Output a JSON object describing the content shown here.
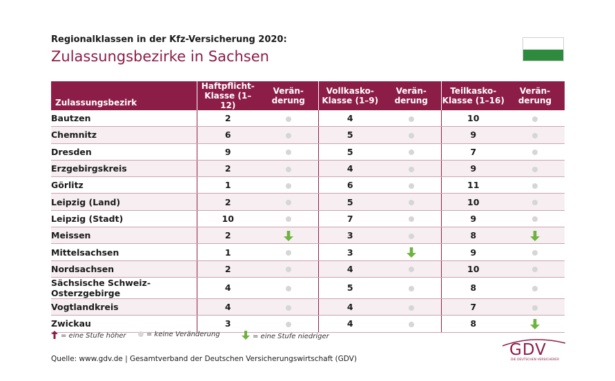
{
  "header": {
    "subtitle": "Regionalklassen in der Kfz-Versicherung 2020:",
    "title": "Zulassungsbezirke in Sachsen"
  },
  "flag": {
    "top_color": "#ffffff",
    "bottom_color": "#2e8b3e"
  },
  "table": {
    "columns": {
      "district": "Zulassungsbezirk",
      "haft_1": "Haftpflicht-",
      "haft_2": "Klasse (1–12)",
      "voll_1": "Vollkasko-",
      "voll_2": "Klasse (1–9)",
      "teil_1": "Teilkasko-",
      "teil_2": "Klasse (1–16)",
      "change_1": "Verän-",
      "change_2": "derung"
    },
    "rows": [
      {
        "name": "Bautzen",
        "haft": "2",
        "haft_chg": "none",
        "voll": "4",
        "voll_chg": "none",
        "teil": "10",
        "teil_chg": "none"
      },
      {
        "name": "Chemnitz",
        "haft": "6",
        "haft_chg": "none",
        "voll": "5",
        "voll_chg": "none",
        "teil": "9",
        "teil_chg": "none"
      },
      {
        "name": "Dresden",
        "haft": "9",
        "haft_chg": "none",
        "voll": "5",
        "voll_chg": "none",
        "teil": "7",
        "teil_chg": "none"
      },
      {
        "name": "Erzgebirgskreis",
        "haft": "2",
        "haft_chg": "none",
        "voll": "4",
        "voll_chg": "none",
        "teil": "9",
        "teil_chg": "none"
      },
      {
        "name": "Görlitz",
        "haft": "1",
        "haft_chg": "none",
        "voll": "6",
        "voll_chg": "none",
        "teil": "11",
        "teil_chg": "none"
      },
      {
        "name": "Leipzig (Land)",
        "haft": "2",
        "haft_chg": "none",
        "voll": "5",
        "voll_chg": "none",
        "teil": "10",
        "teil_chg": "none"
      },
      {
        "name": "Leipzig (Stadt)",
        "haft": "10",
        "haft_chg": "none",
        "voll": "7",
        "voll_chg": "none",
        "teil": "9",
        "teil_chg": "none"
      },
      {
        "name": "Meissen",
        "haft": "2",
        "haft_chg": "down",
        "voll": "3",
        "voll_chg": "none",
        "teil": "8",
        "teil_chg": "down"
      },
      {
        "name": "Mittelsachsen",
        "haft": "1",
        "haft_chg": "none",
        "voll": "3",
        "voll_chg": "down",
        "teil": "9",
        "teil_chg": "none"
      },
      {
        "name": "Nordsachsen",
        "haft": "2",
        "haft_chg": "none",
        "voll": "4",
        "voll_chg": "none",
        "teil": "10",
        "teil_chg": "none"
      },
      {
        "name": "Sächsische Schweiz-Osterzgebirge",
        "haft": "4",
        "haft_chg": "none",
        "voll": "5",
        "voll_chg": "none",
        "teil": "8",
        "teil_chg": "none"
      },
      {
        "name": "Vogtlandkreis",
        "haft": "4",
        "haft_chg": "none",
        "voll": "4",
        "voll_chg": "none",
        "teil": "7",
        "teil_chg": "none"
      },
      {
        "name": "Zwickau",
        "haft": "3",
        "haft_chg": "none",
        "voll": "4",
        "voll_chg": "none",
        "teil": "8",
        "teil_chg": "down"
      }
    ]
  },
  "legend": {
    "up": "= eine Stufe höher",
    "none": "= keine Veränderung",
    "down": "= eine Stufe niedriger"
  },
  "colors": {
    "brand": "#8c1d47",
    "arrow_up": "#8c1d47",
    "arrow_down": "#6db33f",
    "dot": "#d6d6d6"
  },
  "source": "Quelle: www.gdv.de | Gesamtverband der Deutschen Versicherungswirtschaft (GDV)",
  "logo": {
    "text": "GDV",
    "tagline": "DIE DEUTSCHEN VERSICHERER"
  }
}
